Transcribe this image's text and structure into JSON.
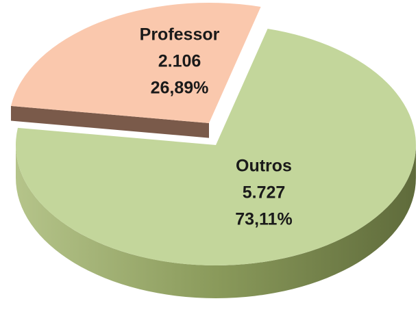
{
  "chart_data": {
    "type": "pie",
    "categories": [
      "Professor",
      "Outros"
    ],
    "values": [
      2106,
      5727
    ],
    "value_labels": [
      "2.106",
      "5.727"
    ],
    "percentages": [
      26.89,
      73.11
    ],
    "percentage_labels": [
      "26,89%",
      "73,11%"
    ],
    "colors": [
      "#fac8ad",
      "#c3d69b"
    ],
    "side_colors": [
      "#7a5a4a",
      "#8a9a5b"
    ]
  }
}
